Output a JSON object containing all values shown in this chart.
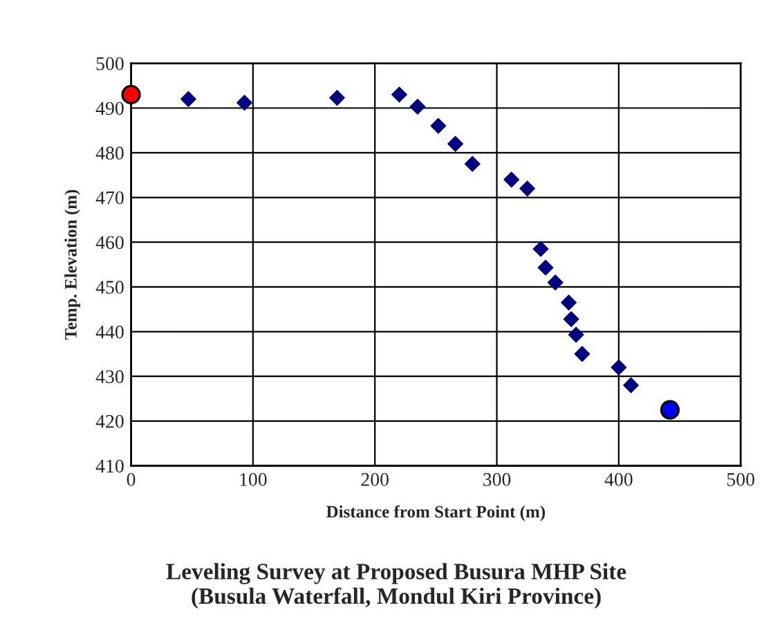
{
  "chart_data": {
    "type": "scatter",
    "xlabel": "Distance from Start Point (m)",
    "ylabel": "Temp. Elevation (m)",
    "title": "Leveling Survey at Proposed Busura MHP Site\n(Busula Waterfall, Mondul Kiri Province)",
    "series": [
      {
        "color": "#000080",
        "marker": "diamond",
        "x": [
          47,
          93,
          169,
          220,
          235,
          252,
          266,
          280,
          312,
          325,
          336,
          340,
          348,
          359,
          361,
          365,
          370,
          400,
          410
        ],
        "values": [
          492,
          491.2,
          492.3,
          493,
          490.3,
          486,
          482,
          477.5,
          474,
          472,
          458.5,
          454.3,
          451,
          446.5,
          442.8,
          439.3,
          435,
          432,
          428
        ]
      },
      {
        "color": "#ff0000",
        "marker": "circle",
        "x": [
          0
        ],
        "values": [
          493
        ]
      },
      {
        "color": "#0000ff",
        "marker": "circle",
        "x": [
          442
        ],
        "values": [
          422.5
        ]
      }
    ],
    "xlim": [
      0,
      500
    ],
    "xticks": [
      0,
      100,
      200,
      300,
      400,
      500
    ],
    "ylim": [
      410,
      500
    ],
    "yticks": [
      410,
      420,
      430,
      440,
      450,
      460,
      470,
      480,
      490,
      500
    ],
    "grid": true
  }
}
